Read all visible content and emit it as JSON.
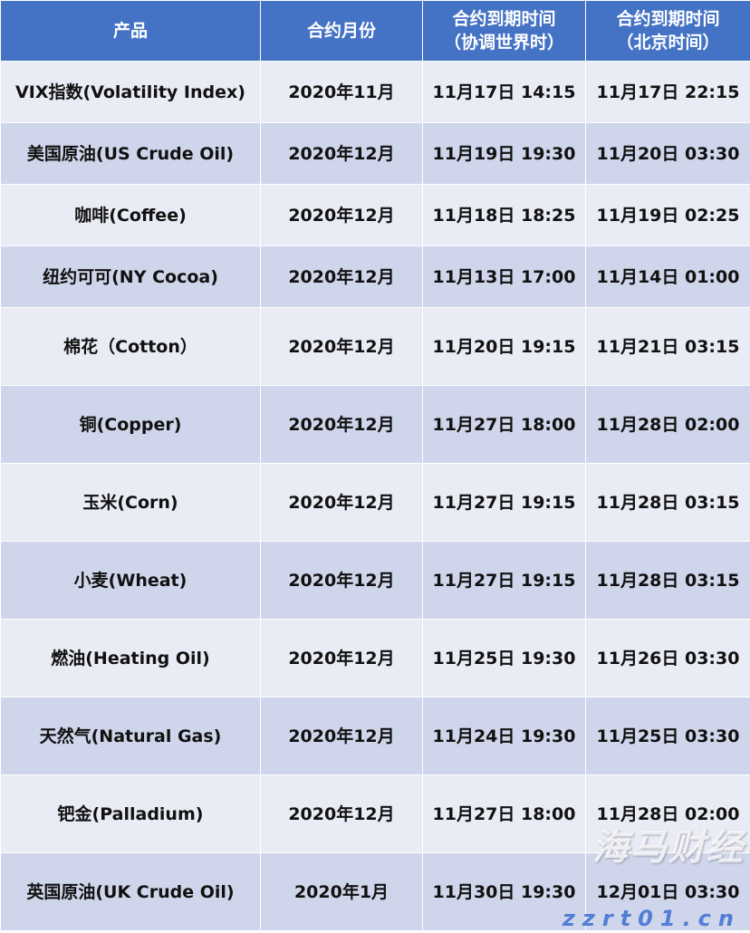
{
  "headers": [
    "产品",
    "合约月份",
    "合约到期时间\n（协调世界时）",
    "合约到期时间\n（北京时间）"
  ],
  "header_lines": [
    [
      "产品"
    ],
    [
      "合约月份"
    ],
    [
      "合约到期时间",
      "（协调世界时）"
    ],
    [
      "合约到期时间",
      "（北京时间）"
    ]
  ],
  "rows": [
    [
      "VIX指数(Volatility Index)",
      "2020年11月",
      "11月17日 14:15",
      "11月17日 22:15"
    ],
    [
      "美国原油(US Crude Oil)",
      "2020年12月",
      "11月19日 19:30",
      "11月20日 03:30"
    ],
    [
      "咖啡(Coffee)",
      "2020年12月",
      "11月18日 18:25",
      "11月19日 02:25"
    ],
    [
      "纽约可可(NY Cocoa)",
      "2020年12月",
      "11月13日 17:00",
      "11月14日 01:00"
    ],
    [
      "棉花（Cotton）",
      "2020年12月",
      "11月20日 19:15",
      "11月21日 03:15"
    ],
    [
      "铜(Copper)",
      "2020年12月",
      "11月27日 18:00",
      "11月28日 02:00"
    ],
    [
      "玉米(Corn)",
      "2020年12月",
      "11月27日 19:15",
      "11月28日 03:15"
    ],
    [
      "小麦(Wheat)",
      "2020年12月",
      "11月27日 19:15",
      "11月28日 03:15"
    ],
    [
      "燃油(Heating Oil)",
      "2020年12月",
      "11月25日 19:30",
      "11月26日 03:30"
    ],
    [
      "天然气(Natural Gas)",
      "2020年12月",
      "11月24日 19:30",
      "11月25日 03:30"
    ],
    [
      "钯金(Palladium)",
      "2020年12月",
      "11月27日 18:00",
      "11月28日 02:00"
    ],
    [
      "英国原油(UK Crude Oil)",
      "2020年1月",
      "11月30日 19:30",
      "12月01日 03:30"
    ]
  ],
  "watermark": {
    "brand": "海马财经",
    "url": "zzrt01.cn"
  },
  "colors": {
    "header": "#4472C4",
    "row_light": "#E9EBF5",
    "row_dark": "#CFD5EA"
  }
}
